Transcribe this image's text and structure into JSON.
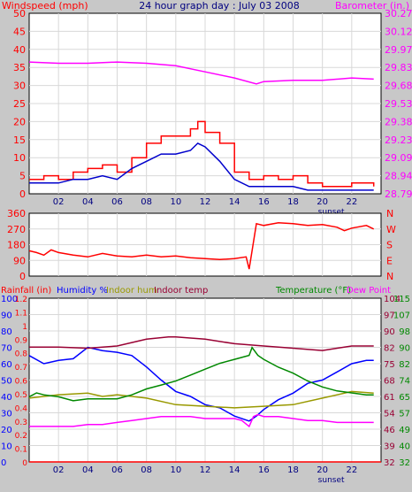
{
  "chart_data": [
    {
      "type": "line",
      "title": "24 hour graph day : July 03 2008",
      "ylabel_left": "Windspeed (mph)",
      "ylabel_right": "Barometer (in.)",
      "x_tick_labels": [
        "02",
        "04",
        "06",
        "08",
        "10",
        "12",
        "14",
        "16",
        "18",
        "20",
        "22"
      ],
      "x_hours": [
        2,
        4,
        6,
        8,
        10,
        12,
        14,
        16,
        18,
        20,
        22
      ],
      "x_range": [
        0,
        24
      ],
      "x_marker": {
        "label": "sunset",
        "hour": 20.6
      },
      "left_ticks": [
        0,
        5,
        10,
        15,
        20,
        25,
        30,
        35,
        40,
        45,
        50
      ],
      "left_ylim": [
        0,
        50
      ],
      "right_ticks": [
        "28.79",
        "28.94",
        "29.09",
        "29.23",
        "29.38",
        "29.53",
        "29.68",
        "29.83",
        "29.97",
        "30.12",
        "30.27"
      ],
      "right_ylim": [
        28.79,
        30.27
      ],
      "series": [
        {
          "name": "Windspeed (mph)",
          "color": "#ff0000",
          "axis": "left",
          "style": "step",
          "x": [
            0,
            1,
            2,
            3,
            4,
            5,
            6,
            7,
            8,
            9,
            10,
            11,
            11.5,
            12,
            13,
            14,
            15,
            16,
            17,
            18,
            19,
            20,
            21,
            22,
            23.5
          ],
          "y": [
            4,
            5,
            4,
            6,
            7,
            8,
            6,
            10,
            14,
            16,
            16,
            18,
            20,
            17,
            14,
            6,
            4,
            5,
            4,
            5,
            3,
            2,
            2,
            3,
            2
          ]
        },
        {
          "name": "Wind average",
          "color": "#0000cc",
          "axis": "left",
          "style": "line",
          "x": [
            0,
            1,
            2,
            3,
            4,
            5,
            6,
            7,
            8,
            9,
            10,
            11,
            11.5,
            12,
            13,
            14,
            15,
            16,
            17,
            18,
            19,
            20,
            21,
            22,
            23.5
          ],
          "y": [
            3,
            3,
            3,
            4,
            4,
            5,
            4,
            7,
            9,
            11,
            11,
            12,
            14,
            13,
            9,
            4,
            2,
            2,
            2,
            2,
            1,
            1,
            1,
            1,
            1
          ]
        },
        {
          "name": "Barometer (in.)",
          "color": "#ff00ff",
          "axis": "right",
          "style": "line",
          "x": [
            0,
            2,
            4,
            6,
            8,
            10,
            12,
            14,
            15.5,
            16,
            18,
            20,
            22,
            23.5
          ],
          "y": [
            29.87,
            29.86,
            29.86,
            29.87,
            29.86,
            29.84,
            29.79,
            29.74,
            29.69,
            29.71,
            29.72,
            29.72,
            29.74,
            29.73
          ]
        }
      ]
    },
    {
      "type": "line",
      "title": "",
      "ylabel_left": "",
      "ylabel_right": "",
      "x_tick_labels": [],
      "x_range": [
        0,
        24
      ],
      "left_ticks": [
        0,
        90,
        180,
        270,
        360
      ],
      "left_ylim": [
        0,
        360
      ],
      "right_labels": [
        "N",
        "W",
        "S",
        "E",
        "N"
      ],
      "series": [
        {
          "name": "Wind direction",
          "color": "#ff0000",
          "axis": "left",
          "style": "line",
          "x": [
            0,
            0.5,
            1,
            1.5,
            2,
            3,
            4,
            5,
            6,
            7,
            8,
            9,
            10,
            11,
            12,
            13,
            14,
            14.8,
            15,
            15.5,
            16,
            17,
            18,
            19,
            20,
            21,
            21.5,
            22,
            23,
            23.5
          ],
          "y": [
            145,
            135,
            120,
            150,
            135,
            120,
            110,
            130,
            115,
            110,
            120,
            110,
            115,
            105,
            100,
            95,
            100,
            110,
            40,
            300,
            290,
            305,
            300,
            290,
            295,
            280,
            260,
            275,
            290,
            270
          ]
        }
      ]
    },
    {
      "type": "line",
      "title": "",
      "legend": [
        "Rainfall (in)",
        "Humidity %",
        "Indoor hum",
        "Indoor temp",
        "Temperature (°F)",
        "Dew Point"
      ],
      "x_tick_labels": [
        "02",
        "04",
        "06",
        "08",
        "10",
        "12",
        "14",
        "16",
        "18",
        "20",
        "22"
      ],
      "x_hours": [
        2,
        4,
        6,
        8,
        10,
        12,
        14,
        16,
        18,
        20,
        22
      ],
      "x_range": [
        0,
        24
      ],
      "x_marker": {
        "label": "sunset",
        "hour": 20.6
      },
      "rain_ticks": [
        "0",
        "0.1",
        "0.2",
        "0.3",
        "0.4",
        "0.5",
        "0.6",
        "0.7",
        "0.8",
        "0.9",
        "1",
        "1.1",
        "1.2"
      ],
      "rain_ylim": [
        0,
        1.2
      ],
      "humidity_ticks": [
        0,
        10,
        20,
        30,
        40,
        50,
        60,
        70,
        80,
        90,
        100
      ],
      "humidity_ylim": [
        0,
        100
      ],
      "temp_ticks": [
        32,
        40,
        49,
        57,
        65,
        74,
        82,
        90,
        98,
        107,
        115
      ],
      "temp_ylim": [
        32,
        115
      ],
      "indoor_ticks": [
        32,
        39,
        46,
        54,
        61,
        68,
        75,
        82,
        90,
        97,
        104
      ],
      "indoor_ylim": [
        32,
        104
      ],
      "series": [
        {
          "name": "Rainfall (in)",
          "color": "#ff0000",
          "axis": "rain",
          "x": [
            0,
            24
          ],
          "y": [
            0,
            0
          ]
        },
        {
          "name": "Humidity %",
          "color": "#0000ff",
          "axis": "humidity",
          "x": [
            0,
            1,
            2,
            3,
            4,
            5,
            6,
            7,
            8,
            9,
            10,
            11,
            12,
            13,
            14,
            15,
            15.5,
            16,
            17,
            18,
            19,
            20,
            21,
            22,
            23,
            23.5
          ],
          "y": [
            65,
            60,
            62,
            63,
            70,
            68,
            67,
            65,
            58,
            50,
            43,
            40,
            35,
            33,
            28,
            25,
            28,
            32,
            38,
            42,
            48,
            50,
            55,
            60,
            62,
            62
          ]
        },
        {
          "name": "Indoor hum",
          "color": "#999900",
          "axis": "humidity",
          "x": [
            0,
            2,
            4,
            5,
            6,
            8,
            10,
            12,
            14,
            16,
            18,
            20,
            22,
            23.5
          ],
          "y": [
            39,
            41,
            42,
            40,
            41,
            39,
            35,
            34,
            33,
            34,
            35,
            39,
            43,
            42
          ]
        },
        {
          "name": "Indoor temp",
          "color": "#990033",
          "axis": "indoor",
          "x": [
            0,
            2,
            4,
            6,
            8,
            9.5,
            10,
            12,
            14,
            16,
            18,
            20,
            21,
            22,
            23.5
          ],
          "y": [
            82.5,
            82.5,
            82,
            83,
            86,
            87,
            87,
            86,
            84,
            83,
            82,
            81,
            82,
            83,
            83
          ]
        },
        {
          "name": "Temperature (°F)",
          "color": "#008800",
          "axis": "temp",
          "x": [
            0,
            0.5,
            1,
            2,
            3,
            4,
            5,
            6,
            7,
            8,
            9,
            10,
            11,
            12,
            13,
            14,
            15,
            15.2,
            15.6,
            16,
            17,
            18,
            19,
            20,
            21,
            22,
            23,
            23.5
          ],
          "y": [
            65,
            67,
            66,
            65,
            63,
            64,
            64,
            64,
            66,
            69,
            71,
            73,
            76,
            79,
            82,
            84,
            86,
            90,
            86,
            84,
            80,
            77,
            73,
            70,
            68,
            67,
            66,
            66
          ]
        },
        {
          "name": "Dew Point",
          "color": "#ff00ff",
          "axis": "temp",
          "x": [
            0,
            1,
            2,
            3,
            4,
            5,
            6,
            7,
            8,
            9,
            10,
            11,
            12,
            13,
            14,
            14.5,
            15,
            15.3,
            15.6,
            16,
            17,
            18,
            19,
            20,
            21,
            22,
            23,
            23.5
          ],
          "y": [
            50,
            50,
            50,
            50,
            51,
            51,
            52,
            53,
            54,
            55,
            55,
            55,
            54,
            54,
            54,
            53,
            50,
            55,
            56,
            55,
            55,
            54,
            53,
            53,
            52,
            52,
            52,
            52
          ]
        }
      ]
    }
  ]
}
